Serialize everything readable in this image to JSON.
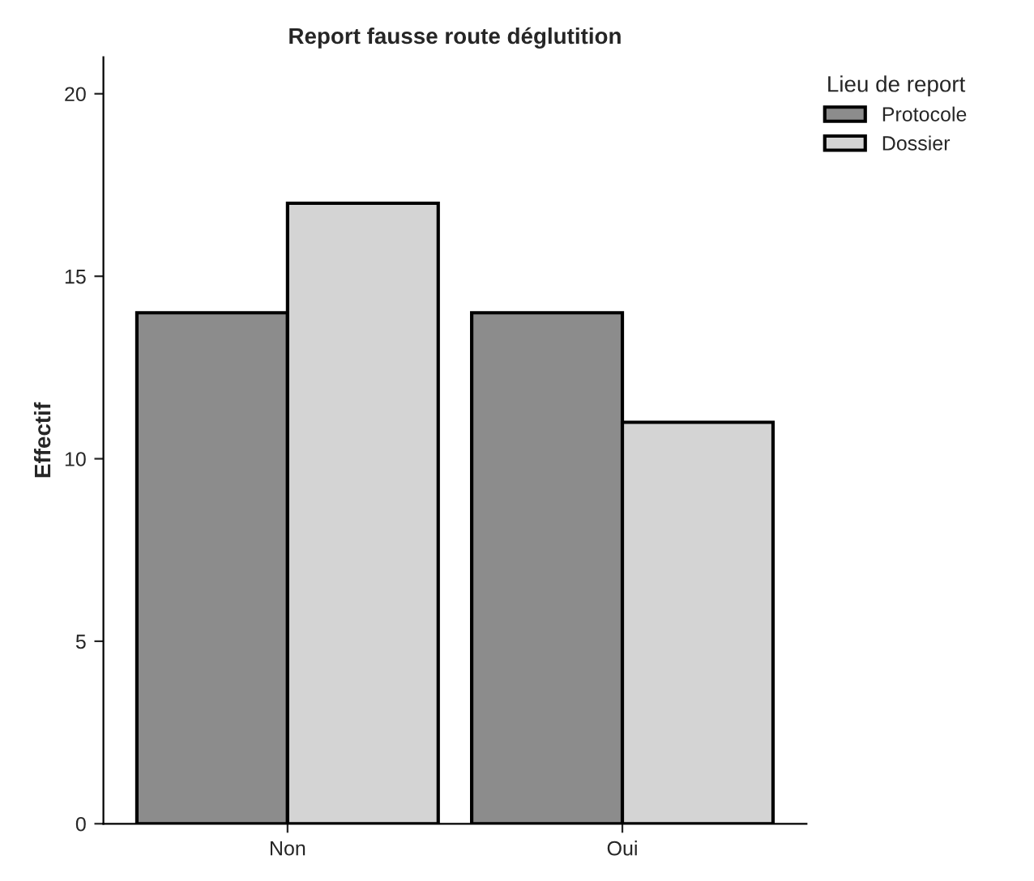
{
  "chart_data": {
    "type": "bar",
    "title": "Report fausse route déglutition",
    "ylabel": "Effectif",
    "legend_title": "Lieu de report",
    "categories": [
      "Non",
      "Oui"
    ],
    "series": [
      {
        "name": "Protocole",
        "color": "#8c8c8c",
        "values": [
          14,
          14
        ]
      },
      {
        "name": "Dossier",
        "color": "#d4d4d4",
        "values": [
          17,
          11
        ]
      }
    ],
    "ylim": [
      0,
      21
    ],
    "yticks": [
      0,
      5,
      10,
      15,
      20
    ],
    "grid": false,
    "legend": "top right"
  }
}
